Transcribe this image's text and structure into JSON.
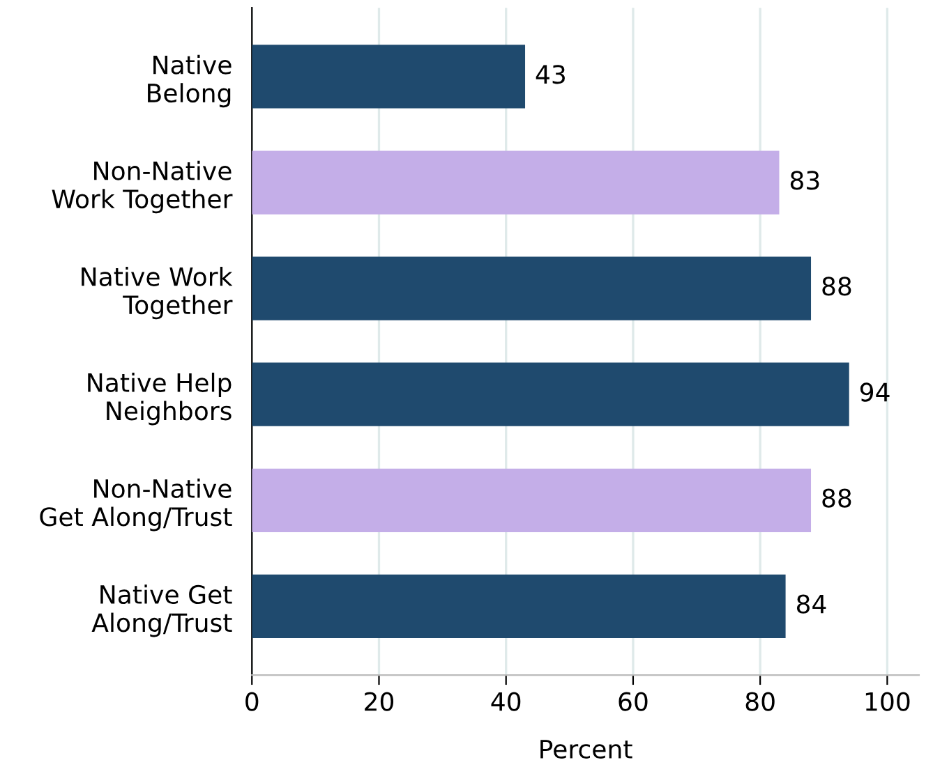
{
  "chart_data": {
    "type": "bar",
    "orientation": "horizontal",
    "xlabel": "Percent",
    "categories": [
      "Native\nBelong",
      "Non-Native\nWork Together",
      "Native Work\nTogether",
      "Native Help\nNeighbors",
      "Non-Native\nGet Along/Trust",
      "Native Get\nAlong/Trust"
    ],
    "values": [
      43,
      83,
      88,
      94,
      88,
      84
    ],
    "colors": [
      "#1f4a6e",
      "#c4aee8",
      "#1f4a6e",
      "#1f4a6e",
      "#c4aee8",
      "#1f4a6e"
    ],
    "xlim": [
      0,
      105
    ],
    "xticks": [
      0,
      20,
      40,
      60,
      80,
      100
    ],
    "grid": "x",
    "data_labels": true,
    "legend": false
  }
}
